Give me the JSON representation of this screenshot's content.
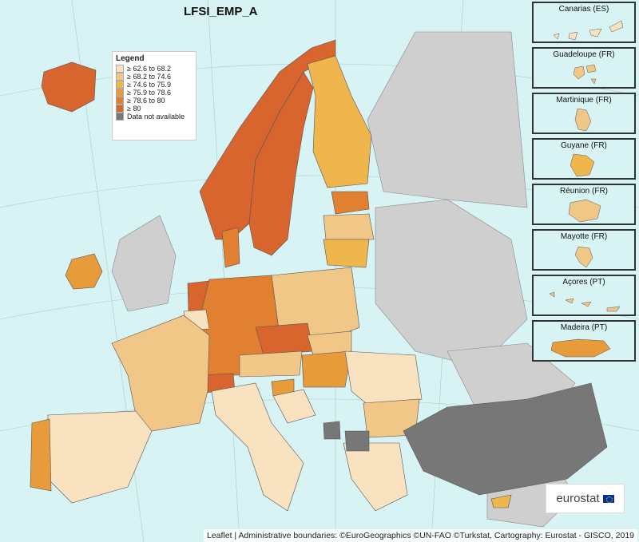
{
  "map": {
    "title": "LFSI_EMP_A",
    "colors": {
      "sea": "#d8f3f3",
      "nodata_land": "#cfcfcf",
      "c1": "#f8e2c0",
      "c2": "#f1c788",
      "c3": "#efb64e",
      "c4": "#e79b3b",
      "c5": "#e08030",
      "c6": "#d9652e",
      "na": "#777777"
    }
  },
  "legend": {
    "title": "Legend",
    "items": [
      {
        "label": "≥ 62.6 to 68.2",
        "color": "#f8e2c0"
      },
      {
        "label": "≥ 68.2 to 74.6",
        "color": "#f1c788"
      },
      {
        "label": "≥ 74.6 to 75.9",
        "color": "#efb64e"
      },
      {
        "label": "≥ 75.9 to 78.6",
        "color": "#e79b3b"
      },
      {
        "label": "≥ 78.6 to 80",
        "color": "#e08030"
      },
      {
        "label": "≥ 80",
        "color": "#d9652e"
      },
      {
        "label": "Data not available",
        "color": "#777777"
      }
    ]
  },
  "insets": [
    {
      "name": "Canarias (ES)"
    },
    {
      "name": "Guadeloupe (FR)"
    },
    {
      "name": "Martinique (FR)"
    },
    {
      "name": "Guyane (FR)"
    },
    {
      "name": "Réunion (FR)"
    },
    {
      "name": "Mayotte (FR)"
    },
    {
      "name": "Açores (PT)"
    },
    {
      "name": "Madeira (PT)"
    }
  ],
  "logo": {
    "text": "eurostat"
  },
  "attribution": "Leaflet | Administrative boundaries: ©EuroGeographics ©UN-FAO ©Turkstat, Cartography: Eurostat - GISCO, 2019"
}
